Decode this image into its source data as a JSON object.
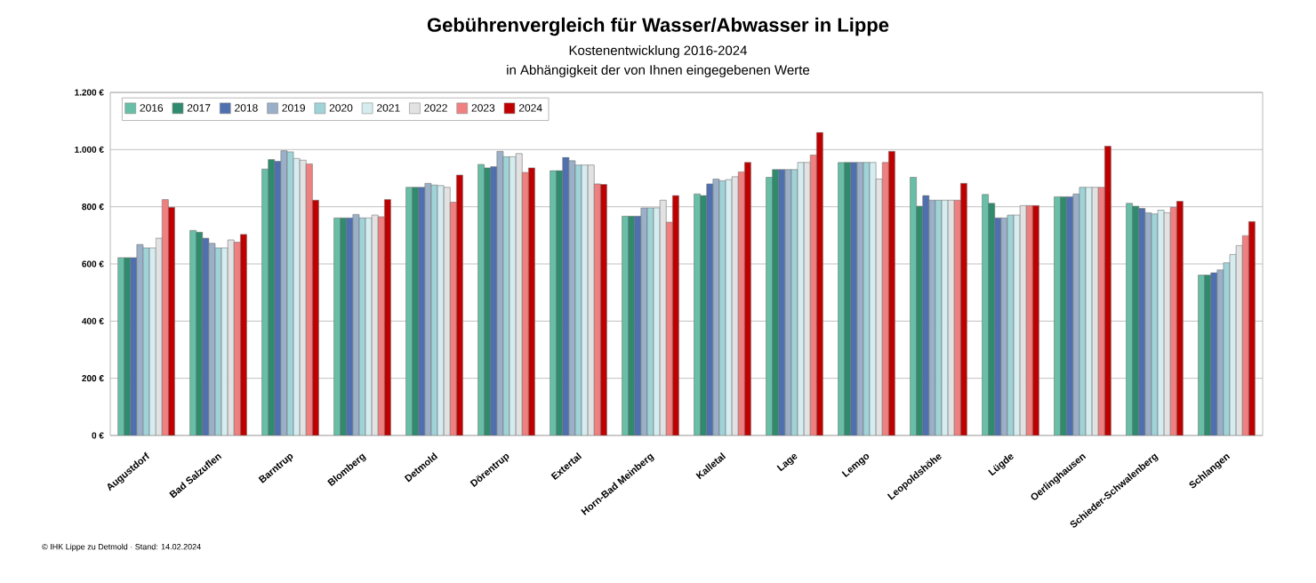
{
  "chart_data": {
    "type": "bar",
    "title": "Gebührenvergleich für Wasser/Abwasser in Lippe",
    "subtitle": "Kostenentwicklung 2016-2024",
    "annotations": [
      "in Abhängigkeit der von Ihnen eingegebenen Werte",
      "© IHK Lippe zu Detmold · Stand: 14.02.2024"
    ],
    "categories": [
      "Augustdorf",
      "Bad Salzuflen",
      "Barntrup",
      "Blomberg",
      "Detmold",
      "Dörentrup",
      "Extertal",
      "Horn-Bad Meinberg",
      "Kalletal",
      "Lage",
      "Lemgo",
      "Leopoldshöhe",
      "Lügde",
      "Oerlinghausen",
      "Schieder-Schwalenberg",
      "Schlangen"
    ],
    "ylim": [
      0,
      1200
    ],
    "yticks": [
      {
        "value": 0,
        "label": "0 €"
      },
      {
        "value": 200,
        "label": "200 €"
      },
      {
        "value": 400,
        "label": "400 €"
      },
      {
        "value": 600,
        "label": "600 €"
      },
      {
        "value": 800,
        "label": "800 €"
      },
      {
        "value": 1000,
        "label": "1.000 €"
      },
      {
        "value": 1200,
        "label": "1.200 €"
      }
    ],
    "grid": "y",
    "legend": "top left",
    "series": [
      {
        "name": "2016",
        "color": "#66bfa6",
        "values": [
          622,
          717,
          932,
          761,
          868,
          948,
          926,
          767,
          845,
          903,
          955,
          903,
          843,
          835,
          812,
          561
        ]
      },
      {
        "name": "2017",
        "color": "#2e8b6e",
        "values": [
          622,
          711,
          965,
          761,
          868,
          936,
          926,
          767,
          839,
          930,
          955,
          802,
          812,
          835,
          802,
          561
        ]
      },
      {
        "name": "2018",
        "color": "#4f6fae",
        "values": [
          622,
          690,
          959,
          761,
          868,
          940,
          973,
          767,
          880,
          930,
          955,
          839,
          761,
          835,
          794,
          569
        ]
      },
      {
        "name": "2019",
        "color": "#9ab0c8",
        "values": [
          668,
          672,
          996,
          773,
          882,
          994,
          961,
          796,
          897,
          930,
          955,
          823,
          761,
          845,
          779,
          579
        ]
      },
      {
        "name": "2020",
        "color": "#9fd3d8",
        "values": [
          656,
          656,
          992,
          761,
          876,
          975,
          946,
          796,
          891,
          930,
          955,
          823,
          771,
          868,
          775,
          604
        ]
      },
      {
        "name": "2021",
        "color": "#d6edf0",
        "values": [
          656,
          656,
          969,
          761,
          874,
          975,
          946,
          796,
          895,
          955,
          955,
          823,
          771,
          868,
          788,
          633
        ]
      },
      {
        "name": "2022",
        "color": "#e2e2e2",
        "values": [
          690,
          684,
          963,
          771,
          868,
          986,
          946,
          823,
          905,
          955,
          897,
          823,
          804,
          868,
          779,
          664
        ]
      },
      {
        "name": "2023",
        "color": "#f08080",
        "values": [
          825,
          676,
          950,
          765,
          816,
          920,
          880,
          746,
          922,
          981,
          955,
          823,
          804,
          868,
          798,
          699
        ]
      },
      {
        "name": "2024",
        "color": "#c00000",
        "values": [
          798,
          703,
          823,
          825,
          911,
          936,
          878,
          839,
          955,
          1060,
          994,
          882,
          804,
          1012,
          819,
          748
        ]
      }
    ]
  }
}
